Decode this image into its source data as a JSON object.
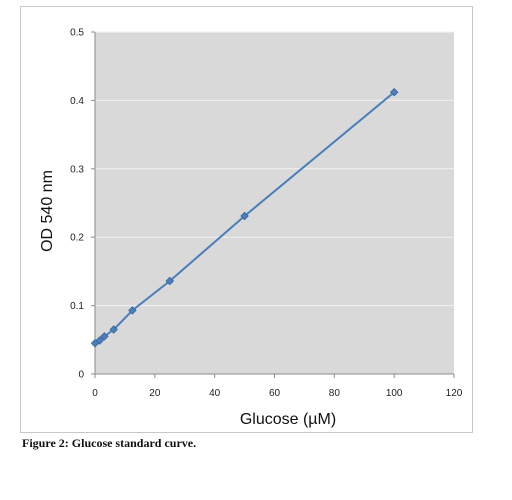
{
  "chart_data": {
    "type": "line",
    "xlabel": "Glucose (µM)",
    "ylabel": "OD 540 nm",
    "xlim": [
      0,
      120
    ],
    "ylim": [
      0,
      0.5
    ],
    "xticks": [
      "0",
      "20",
      "40",
      "60",
      "80",
      "100",
      "120"
    ],
    "yticks": [
      "0",
      "0.1",
      "0.2",
      "0.3",
      "0.4",
      "0.5"
    ],
    "grid": true,
    "legend": "none",
    "series": [
      {
        "x": [
          0,
          1.56,
          3.13,
          6.25,
          12.5,
          25,
          50,
          100
        ],
        "y": [
          0.045,
          0.049,
          0.055,
          0.065,
          0.093,
          0.136,
          0.231,
          0.412
        ]
      }
    ],
    "colors": {
      "plot_background": "#d9d9d9",
      "gridline": "#f2f2f2",
      "series": "#4a7ebb"
    }
  },
  "caption": "Figure 2: Glucose standard curve."
}
